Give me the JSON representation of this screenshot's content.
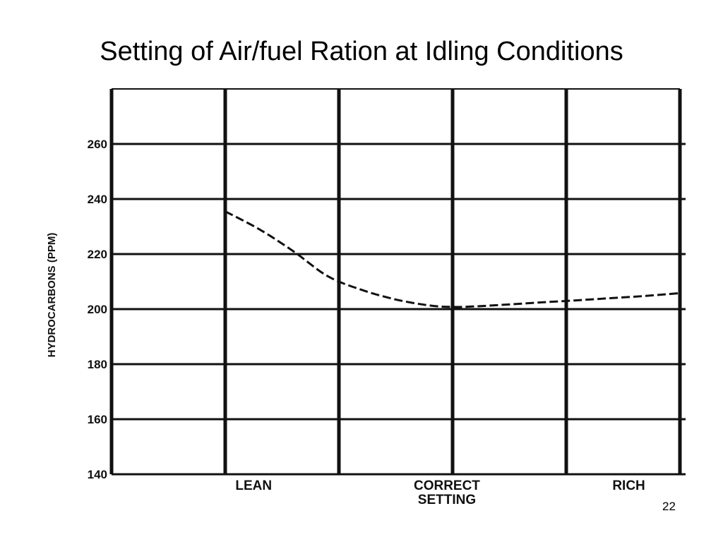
{
  "slide": {
    "title": "Setting of Air/fuel Ration at Idling Conditions",
    "page_number": "22"
  },
  "colors": {
    "ink": "#111111",
    "background": "#ffffff"
  },
  "chart_data": {
    "type": "line",
    "title": "",
    "xlabel": "",
    "ylabel": "HYDROCARBONS (PPM)",
    "ylim": [
      140,
      280
    ],
    "xlim": [
      0,
      5
    ],
    "y_ticks": [
      140,
      160,
      180,
      200,
      220,
      240,
      260
    ],
    "x_gridlines": [
      0,
      1,
      2,
      3,
      4,
      5
    ],
    "grid": true,
    "categories": [
      {
        "label": "LEAN",
        "x": 1.25
      },
      {
        "label": "CORRECT\nSETTING",
        "x": 2.95
      },
      {
        "label": "RICH",
        "x": 4.55
      }
    ],
    "series": [
      {
        "line_style": "dashed",
        "x": [
          1.0,
          1.3,
          1.6,
          1.9,
          2.2,
          2.5,
          2.8,
          3.0,
          3.2,
          3.5,
          3.8,
          4.1,
          4.4,
          4.7,
          5.0
        ],
        "y": [
          235.5,
          229,
          221,
          212,
          207,
          203.5,
          201.3,
          200.8,
          201.0,
          201.7,
          202.5,
          203.2,
          204.0,
          204.8,
          205.8
        ]
      }
    ]
  }
}
